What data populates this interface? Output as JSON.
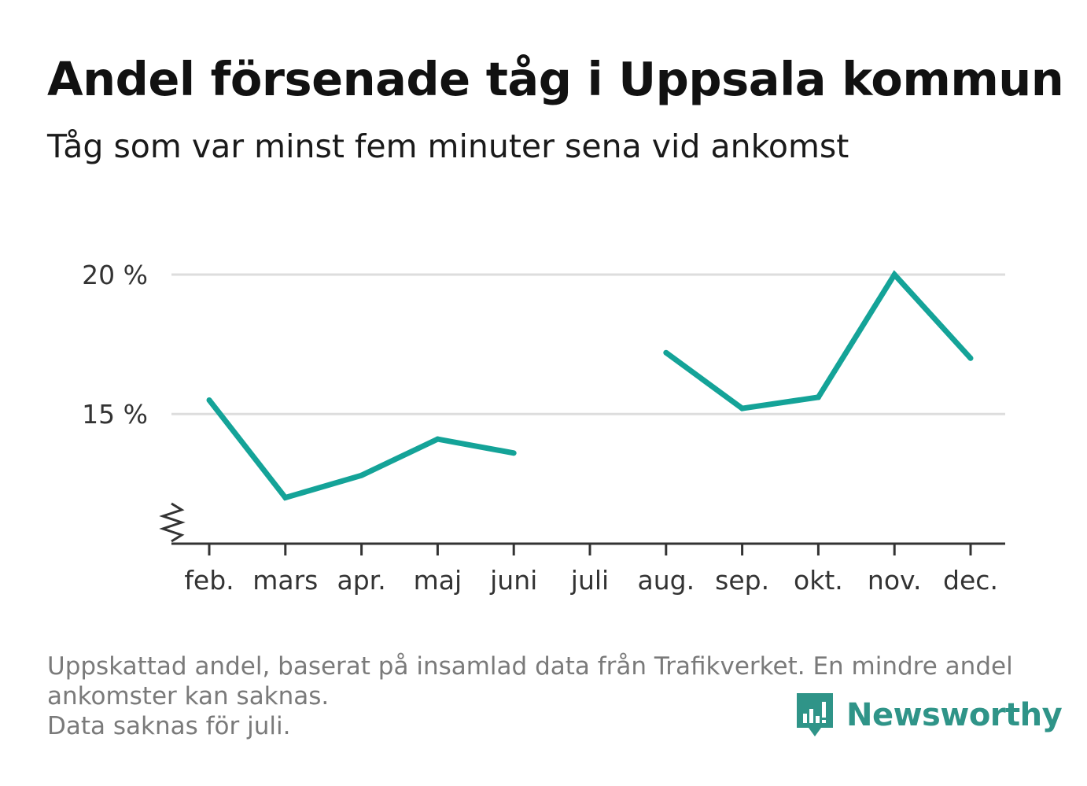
{
  "title": "Andel försenade tåg i Uppsala kommun",
  "subtitle": "Tåg som var minst fem minuter sena vid ankomst",
  "footnote": {
    "line1": "Uppskattad andel, baserat på insamlad data från Trafikverket. En mindre andel",
    "line2": "ankomster kan saknas.",
    "line3": "Data saknas för juli."
  },
  "brand": {
    "name": "Newsworthy",
    "color": "#2f9488"
  },
  "colors": {
    "line": "#14a398",
    "grid": "#dddddd",
    "axis": "#333333"
  },
  "chart_data": {
    "type": "line",
    "title": "Andel försenade tåg i Uppsala kommun",
    "subtitle": "Tåg som var minst fem minuter sena vid ankomst",
    "categories": [
      "feb.",
      "mars",
      "apr.",
      "maj",
      "juni",
      "juli",
      "aug.",
      "sep.",
      "okt.",
      "nov.",
      "dec."
    ],
    "series": [
      {
        "values": [
          15.5,
          12.0,
          12.8,
          14.1,
          13.6,
          null,
          17.2,
          15.2,
          15.6,
          20.0,
          17.0
        ]
      }
    ],
    "yticks": [
      {
        "value": 15,
        "label": "15 %"
      },
      {
        "value": 20,
        "label": "20 %"
      }
    ],
    "ylim": [
      10.35,
      20.0
    ],
    "y_axis_break": true,
    "grid": true,
    "legend": "none"
  }
}
